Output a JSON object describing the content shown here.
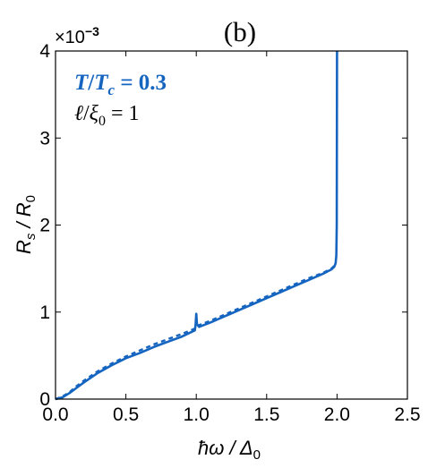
{
  "chart_data": {
    "type": "line",
    "panel_label": "(b)",
    "xlabel": "ħω / Δ",
    "xlabel_sub": "0",
    "ylabel": "R",
    "ylabel_sub1": "s",
    "ylabel_mid": " / R",
    "ylabel_sub2": "0",
    "y_multiplier_base": "×10",
    "y_multiplier_exp": "−3",
    "xlim": [
      0,
      2.5
    ],
    "ylim": [
      0,
      4
    ],
    "x_ticks": [
      0.0,
      0.5,
      1.0,
      1.5,
      2.0,
      2.5
    ],
    "x_tick_labels": [
      "0.0",
      "0.5",
      "1.0",
      "1.5",
      "2.0",
      "2.5"
    ],
    "y_ticks": [
      0,
      1,
      2,
      3,
      4
    ],
    "y_tick_labels": [
      "0",
      "1",
      "2",
      "3",
      "4"
    ],
    "annotations": {
      "line1": {
        "T": "T",
        "slash": "/",
        "Tc": "T",
        "c_sub": "c",
        "eq": " = 0.3",
        "color": "#1565c0"
      },
      "line2": {
        "ell": "ℓ",
        "slash": "/",
        "xi": "ξ",
        "xi_sub": "0",
        "eq": " = 1",
        "color": "#000000"
      }
    },
    "series": [
      {
        "style": "solid",
        "color": "#1565c0",
        "x": [
          0.0,
          0.05,
          0.1,
          0.15,
          0.2,
          0.3,
          0.4,
          0.5,
          0.6,
          0.7,
          0.8,
          0.9,
          0.99,
          0.995,
          1.0,
          1.005,
          1.02,
          1.1,
          1.2,
          1.3,
          1.4,
          1.5,
          1.6,
          1.7,
          1.8,
          1.9,
          1.96,
          1.98,
          1.99,
          1.995,
          1.998,
          2.0
        ],
        "y": [
          0.0,
          0.02,
          0.07,
          0.13,
          0.19,
          0.3,
          0.39,
          0.47,
          0.53,
          0.6,
          0.66,
          0.72,
          0.79,
          0.85,
          0.98,
          0.86,
          0.83,
          0.88,
          0.95,
          1.02,
          1.09,
          1.16,
          1.23,
          1.3,
          1.37,
          1.44,
          1.49,
          1.52,
          1.56,
          1.65,
          2.0,
          4.0
        ]
      },
      {
        "style": "dashed",
        "color": "#1565c0",
        "x": [
          0.0,
          0.05,
          0.1,
          0.15,
          0.2,
          0.3,
          0.4,
          0.5,
          0.6,
          0.7,
          0.8,
          0.9,
          0.99,
          1.0,
          1.02,
          1.1,
          1.2,
          1.3,
          1.4,
          1.5,
          1.6,
          1.7,
          1.8,
          1.9,
          1.96,
          1.98
        ],
        "y": [
          0.0,
          0.03,
          0.08,
          0.15,
          0.21,
          0.32,
          0.41,
          0.49,
          0.56,
          0.63,
          0.69,
          0.75,
          0.81,
          0.84,
          0.85,
          0.9,
          0.97,
          1.04,
          1.11,
          1.18,
          1.25,
          1.32,
          1.39,
          1.45,
          1.5,
          1.53
        ]
      }
    ]
  }
}
